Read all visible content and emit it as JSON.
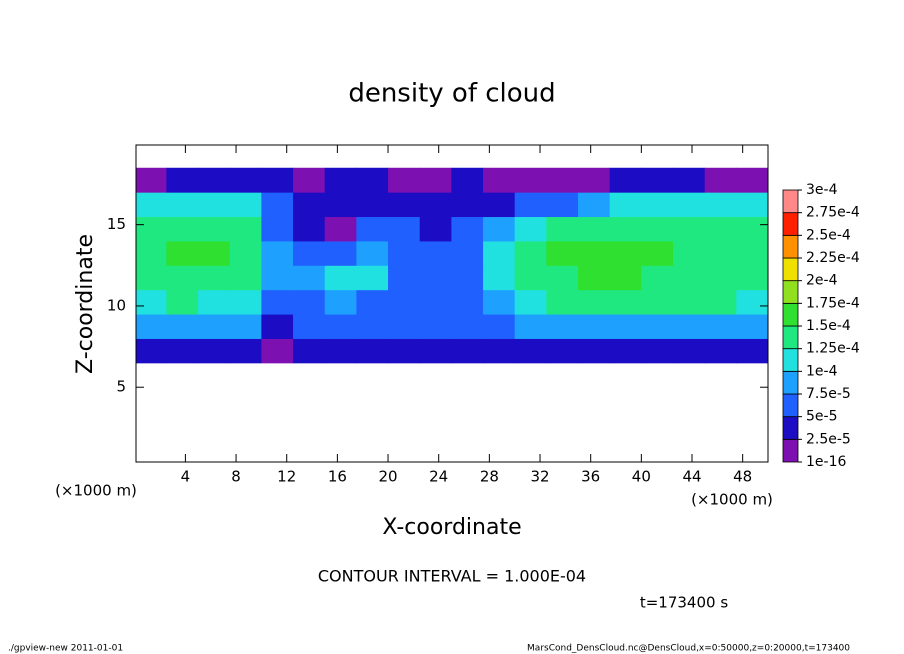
{
  "chart_data": {
    "type": "heatmap",
    "title": "density of cloud",
    "x_label": "X-coordinate",
    "y_label": "Z-coordinate",
    "x_unit": "(×1000 m)",
    "y_unit": "(×1000 m)",
    "contour_note": "CONTOUR INTERVAL = 1.000E-04",
    "time_label": "t=173400 s",
    "footer_left": "./gpview-new  2011-01-01",
    "footer_right": "MarsCond_DensCloud.nc@DensCloud,x=0:50000,z=0:20000,t=173400",
    "xlim": [
      0.1,
      50
    ],
    "ylim": [
      0.4,
      19.9
    ],
    "xticks": [
      4,
      8,
      12,
      16,
      20,
      24,
      28,
      32,
      36,
      40,
      44,
      48
    ],
    "yticks": [
      5,
      10,
      15
    ],
    "x_bins": [
      0,
      2.5,
      5,
      7.5,
      10,
      12.5,
      15,
      17.5,
      20,
      22.5,
      25,
      27.5,
      30,
      32.5,
      35,
      37.5,
      40,
      42.5,
      45,
      47.5,
      50
    ],
    "y_bins": [
      6.5,
      8,
      9.5,
      11,
      12.5,
      14,
      15.5,
      17,
      18.5
    ],
    "values": [
      [
        4e-05,
        4e-05,
        4e-05,
        4e-05,
        1e-05,
        3e-05,
        4e-05,
        4e-05,
        4e-05,
        4e-05,
        4e-05,
        4e-05,
        4e-05,
        4e-05,
        4e-05,
        4e-05,
        4e-05,
        4e-05,
        4e-05,
        4e-05
      ],
      [
        9e-05,
        9e-05,
        9e-05,
        8e-05,
        3e-05,
        6e-05,
        6e-05,
        6e-05,
        5e-05,
        6e-05,
        6e-05,
        7e-05,
        8e-05,
        9e-05,
        9e-05,
        9e-05,
        9e-05,
        9e-05,
        9e-05,
        9e-05
      ],
      [
        0.00012,
        0.000125,
        0.00012,
        0.0001,
        5e-05,
        7e-05,
        9e-05,
        6e-05,
        6e-05,
        5e-05,
        6e-05,
        8e-05,
        0.00012,
        0.000125,
        0.000125,
        0.000125,
        0.000125,
        0.000125,
        0.000125,
        0.00012
      ],
      [
        0.00014,
        0.000145,
        0.000145,
        0.00014,
        9e-05,
        8e-05,
        0.00011,
        0.000105,
        7e-05,
        5e-05,
        6e-05,
        0.00011,
        0.00014,
        0.000145,
        0.00015,
        0.00015,
        0.000145,
        0.000145,
        0.00014,
        0.000135
      ],
      [
        0.000145,
        0.00015,
        0.00015,
        0.000145,
        9e-05,
        5e-05,
        7e-05,
        9e-05,
        6e-05,
        5e-05,
        5e-05,
        0.000105,
        0.00014,
        0.00015,
        0.00015,
        0.00015,
        0.00015,
        0.000145,
        0.000145,
        0.00014
      ],
      [
        0.00014,
        0.000145,
        0.000145,
        0.00014,
        7e-05,
        4e-05,
        2e-05,
        5e-05,
        5e-05,
        4e-05,
        5e-05,
        8e-05,
        0.00012,
        0.000135,
        0.00014,
        0.00014,
        0.00014,
        0.00014,
        0.000135,
        0.00013
      ],
      [
        0.000105,
        0.00011,
        0.00012,
        0.00012,
        6e-05,
        4e-05,
        4e-05,
        4e-05,
        4e-05,
        4e-05,
        3e-05,
        4e-05,
        5e-05,
        6e-05,
        8e-05,
        0.0001,
        0.000105,
        0.000105,
        0.0001,
        0.000105
      ],
      [
        2e-05,
        4e-05,
        3e-05,
        3e-05,
        3e-05,
        2e-05,
        3e-05,
        3e-05,
        2e-05,
        2e-05,
        3e-05,
        2e-05,
        1e-05,
        1e-05,
        2e-05,
        3e-05,
        4e-05,
        3e-05,
        2e-05,
        2e-05
      ]
    ],
    "levels": [
      {
        "value": 1e-16,
        "label": "1e-16"
      },
      {
        "value": 2.5e-05,
        "label": "2.5e-5"
      },
      {
        "value": 5e-05,
        "label": "5e-5"
      },
      {
        "value": 7.5e-05,
        "label": "7.5e-5"
      },
      {
        "value": 0.0001,
        "label": "1e-4"
      },
      {
        "value": 0.000125,
        "label": "1.25e-4"
      },
      {
        "value": 0.00015,
        "label": "1.5e-4"
      },
      {
        "value": 0.000175,
        "label": "1.75e-4"
      },
      {
        "value": 0.0002,
        "label": "2e-4"
      },
      {
        "value": 0.000225,
        "label": "2.25e-4"
      },
      {
        "value": 0.00025,
        "label": "2.5e-4"
      },
      {
        "value": 0.000275,
        "label": "2.75e-4"
      },
      {
        "value": 0.0003,
        "label": "3e-4"
      }
    ],
    "colors": [
      "#7d10b0",
      "#1c0cc4",
      "#2060ff",
      "#1ea0ff",
      "#20e0e0",
      "#20e880",
      "#30e030",
      "#90e020",
      "#f0e000",
      "#ff9000",
      "#ff2000",
      "#ff8888"
    ]
  }
}
